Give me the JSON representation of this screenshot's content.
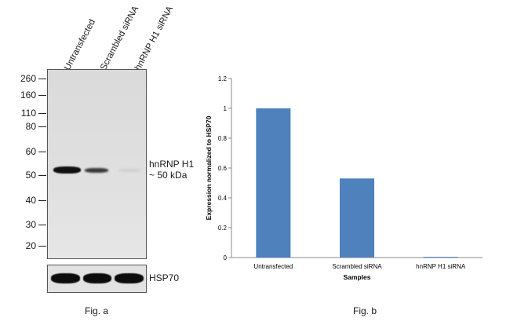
{
  "fig_a": {
    "lanes": [
      "Untransfected",
      "Scrambled siRNA",
      "hnRNP H1 siRNA"
    ],
    "mw_markers": [
      "260",
      "160",
      "110",
      "80",
      "60",
      "50",
      "40",
      "30",
      "20"
    ],
    "target_label_line1": "hnRNP H1",
    "target_label_line2": "~ 50 kDa",
    "loading_label": "HSP70",
    "caption": "Fig. a"
  },
  "fig_b": {
    "caption": "Fig. b"
  },
  "chart_data": {
    "type": "bar",
    "categories": [
      "Untransfected",
      "Scrambled siRNA",
      "hnRNP H1 siRNA"
    ],
    "values": [
      1.0,
      0.53,
      0.005
    ],
    "title": "",
    "xlabel": "Samples",
    "ylabel": "Expression normalized to HSP70",
    "ylim": [
      0,
      1.2
    ],
    "yticks": [
      "0",
      "0.2",
      "0.4",
      "0.6",
      "0.8",
      "1",
      "1.2"
    ],
    "bar_color": "#4f81bd",
    "grid": false,
    "legend": "none"
  }
}
